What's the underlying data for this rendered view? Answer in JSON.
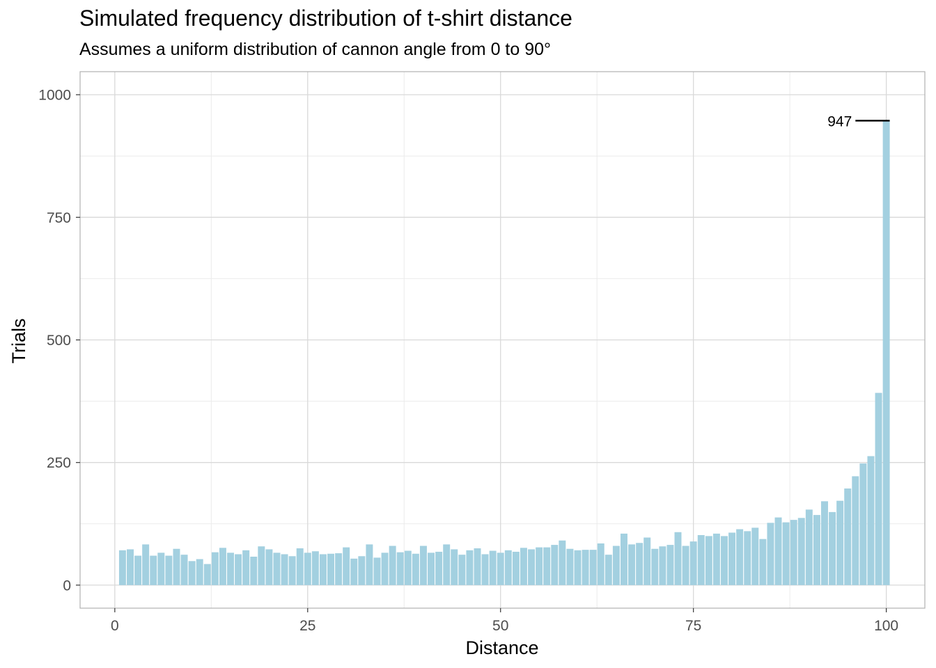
{
  "chart_data": {
    "type": "bar",
    "title": "Simulated frequency distribution of t-shirt distance",
    "subtitle": "Assumes a uniform distribution of cannon angle from 0 to 90°",
    "xlabel": "Distance",
    "ylabel": "Trials",
    "xlim": [
      -4.5,
      105
    ],
    "ylim": [
      -47,
      1047
    ],
    "x_ticks": [
      0,
      25,
      50,
      75,
      100
    ],
    "x_tick_labels": [
      "0",
      "25",
      "50",
      "75",
      "100"
    ],
    "y_ticks": [
      0,
      250,
      500,
      750,
      1000
    ],
    "y_tick_labels": [
      "0",
      "250",
      "500",
      "750",
      "1000"
    ],
    "grid": true,
    "bar_color": "#a3d0e0",
    "x": [
      1,
      2,
      3,
      4,
      5,
      6,
      7,
      8,
      9,
      10,
      11,
      12,
      13,
      14,
      15,
      16,
      17,
      18,
      19,
      20,
      21,
      22,
      23,
      24,
      25,
      26,
      27,
      28,
      29,
      30,
      31,
      32,
      33,
      34,
      35,
      36,
      37,
      38,
      39,
      40,
      41,
      42,
      43,
      44,
      45,
      46,
      47,
      48,
      49,
      50,
      51,
      52,
      53,
      54,
      55,
      56,
      57,
      58,
      59,
      60,
      61,
      62,
      63,
      64,
      65,
      66,
      67,
      68,
      69,
      70,
      71,
      72,
      73,
      74,
      75,
      76,
      77,
      78,
      79,
      80,
      81,
      82,
      83,
      84,
      85,
      86,
      87,
      88,
      89,
      90,
      91,
      92,
      93,
      94,
      95,
      96,
      97,
      98,
      99,
      100
    ],
    "values": [
      71,
      73,
      60,
      83,
      60,
      66,
      60,
      74,
      62,
      49,
      53,
      43,
      67,
      76,
      66,
      63,
      71,
      58,
      79,
      73,
      66,
      63,
      59,
      75,
      66,
      69,
      63,
      64,
      65,
      77,
      54,
      59,
      83,
      56,
      66,
      80,
      67,
      70,
      64,
      80,
      66,
      68,
      83,
      73,
      62,
      71,
      75,
      63,
      70,
      66,
      71,
      68,
      76,
      73,
      77,
      77,
      82,
      91,
      74,
      71,
      72,
      72,
      85,
      62,
      80,
      105,
      83,
      86,
      97,
      74,
      79,
      82,
      108,
      80,
      89,
      102,
      100,
      105,
      100,
      107,
      114,
      110,
      117,
      94,
      127,
      138,
      128,
      133,
      137,
      154,
      143,
      171,
      149,
      172,
      197,
      222,
      248,
      263,
      392,
      947
    ],
    "annotations": [
      {
        "x": 100,
        "y": 947,
        "label": "947"
      }
    ]
  }
}
